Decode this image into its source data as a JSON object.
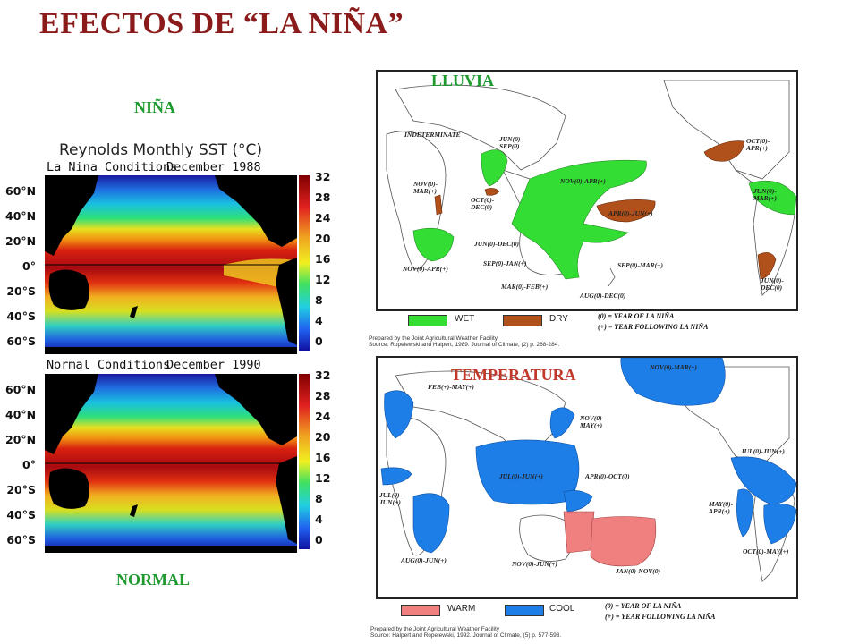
{
  "title": "EFECTOS DE “LA NIÑA”",
  "labels": {
    "nina": "NIÑA",
    "normal": "NORMAL",
    "lluvia": "LLUVIA",
    "temperatura": "TEMPERATURA"
  },
  "sst": {
    "title": "Reynolds Monthly SST  (°C)",
    "top_condition": "La Nina Conditions",
    "top_date": "December 1988",
    "bottom_condition": "Normal Conditions",
    "bottom_date": "December 1990",
    "latitudes": [
      "60°N",
      "40°N",
      "20°N",
      "0°",
      "20°S",
      "40°S",
      "60°S"
    ],
    "colorbar": [
      "32",
      "28",
      "24",
      "20",
      "16",
      "12",
      "8",
      "4",
      "0"
    ]
  },
  "rain": {
    "notes": [
      "INDETERMINATE",
      "JUN(0)-SEP(0)",
      "NOV(0)-MAR(+)",
      "OCT(0)-DEC(0)",
      "NOV(0)-APR(+)",
      "APR(0)-JUN(+)",
      "JUN(0)-DEC(0)",
      "SEP(0)-JAN(+)",
      "MAR(0)-FEB(+)",
      "SEP(0)-MAR(+)",
      "AUG(0)-DEC(0)",
      "NOV(0)-APR(+)",
      "OCT(0)-APR(+)",
      "JUN(0)-MAR(+)",
      "JUN(0)-DEC(0)"
    ],
    "legend_wet": "WET",
    "legend_dry": "DRY",
    "year_legend": [
      "(0)  =  YEAR OF LA NIÑA",
      "(+) = YEAR FOLLOWING LA NIÑA"
    ],
    "source": [
      "Prepared by the Joint Agricultural Weather Facility",
      "Source: Ropelewski and Halpert, 1989. Journal of Climate, (2) p. 268-284."
    ],
    "colors": {
      "wet": "#33dd33",
      "dry": "#b0501a"
    }
  },
  "temp": {
    "notes": [
      "FEB(+)-MAY(+)",
      "NOV(0)-MAR(+)",
      "NOV(0)-MAY(+)",
      "JUL(0)-JUN(+)",
      "APR(0)-OCT(0)",
      "JUL(0)-JUN(+)",
      "MAY(0)-APR(+)",
      "JUL(0)-JUN(+)",
      "OCT(0)-MAY(+)",
      "AUG(0)-JUN(+)",
      "NOV(0)-JUN(+)",
      "JAN(0)-NOV(0)"
    ],
    "legend_warm": "WARM",
    "legend_cool": "COOL",
    "year_legend": [
      "(0) = YEAR OF LA NIÑA",
      "(+) = YEAR FOLLOWING LA NIÑA"
    ],
    "source": [
      "Prepared by the Joint Agricultural Weather Facility",
      "Source: Halpert and Ropelewski, 1992. Journal of Climate, (5) p. 577-593."
    ],
    "colors": {
      "warm": "#f08080",
      "cool": "#1e7ee8"
    }
  }
}
